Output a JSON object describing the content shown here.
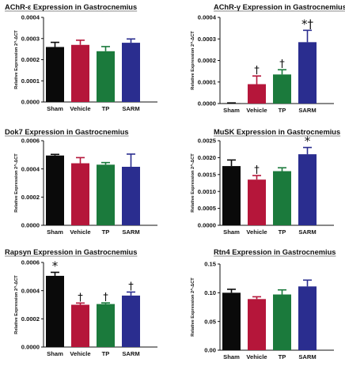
{
  "colors": {
    "Sham": "#0a0a0a",
    "Vehicle": "#b5163a",
    "TP": "#1b7a3c",
    "SARM": "#2a2d8f"
  },
  "chart_data": [
    {
      "type": "bar",
      "title": "AChR-ε Expression in Gastrocnemius",
      "ylabel": "Relative Expression 2^-ΔCT",
      "categories": [
        "Sham",
        "Vehicle",
        "TP",
        "SARM"
      ],
      "values": [
        0.00026,
        0.00027,
        0.00024,
        0.00028
      ],
      "errors": [
        2.2e-05,
        2.2e-05,
        2.2e-05,
        1.8e-05
      ],
      "annotations": [
        "",
        "",
        "",
        ""
      ],
      "ylim": [
        0,
        0.0004
      ],
      "yticks": [
        "0.0000",
        "0.0001",
        "0.0002",
        "0.0003",
        "0.0004"
      ]
    },
    {
      "type": "bar",
      "title": "AChR-γ Expression in Gastrocnemius",
      "ylabel": "Relative Expression 2^-ΔCT",
      "categories": [
        "Sham",
        "Vehicle",
        "TP",
        "SARM"
      ],
      "values": [
        2e-06,
        9e-05,
        0.000135,
        0.000285
      ],
      "errors": [
        1e-06,
        3.8e-05,
        2.2e-05,
        5.5e-05
      ],
      "annotations": [
        "",
        "†",
        "†",
        "*†"
      ],
      "ylim": [
        0,
        0.0004
      ],
      "yticks": [
        "0.0000",
        "0.0001",
        "0.0002",
        "0.0003",
        "0.0004"
      ]
    },
    {
      "type": "bar",
      "title": "Dok7 Expression in Gastrocnemius",
      "ylabel": "Relative Expression 2^-ΔCT",
      "categories": [
        "Sham",
        "Vehicle",
        "TP",
        "SARM"
      ],
      "values": [
        0.000495,
        0.00044,
        0.00043,
        0.000415
      ],
      "errors": [
        8e-06,
        4e-05,
        1.5e-05,
        9e-05
      ],
      "annotations": [
        "",
        "",
        "",
        ""
      ],
      "ylim": [
        0,
        0.0006
      ],
      "yticks": [
        "0.0000",
        "0.0002",
        "0.0004",
        "0.0006"
      ]
    },
    {
      "type": "bar",
      "title": "MuSK Expression in Gastrocnemius",
      "ylabel": "Relative Expression 2^-ΔCT",
      "categories": [
        "Sham",
        "Vehicle",
        "TP",
        "SARM"
      ],
      "values": [
        0.00175,
        0.00135,
        0.0016,
        0.0021
      ],
      "errors": [
        0.00018,
        0.00012,
        0.0001,
        0.0002
      ],
      "annotations": [
        "",
        "†",
        "",
        "*"
      ],
      "ylim": [
        0,
        0.0025
      ],
      "yticks": [
        "0.0000",
        "0.0005",
        "0.0010",
        "0.0015",
        "0.0020",
        "0.0025"
      ]
    },
    {
      "type": "bar",
      "title": "Rapsyn Expression in Gastrocnemius",
      "ylabel": "Relative Expression 2^-ΔCT",
      "categories": [
        "Sham",
        "Vehicle",
        "TP",
        "SARM"
      ],
      "values": [
        0.000505,
        0.0003,
        0.000305,
        0.000365
      ],
      "errors": [
        2.5e-05,
        1.2e-05,
        8e-06,
        2.5e-05
      ],
      "annotations": [
        "*",
        "†",
        "†",
        "†"
      ],
      "ylim": [
        0,
        0.0006
      ],
      "yticks": [
        "0.0000",
        "0.0002",
        "0.0004",
        "0.0006"
      ]
    },
    {
      "type": "bar",
      "title": "Rtn4 Expression in Gastrocnemius",
      "ylabel": "Relative Expression 2^-ΔCT",
      "categories": [
        "Sham",
        "Vehicle",
        "TP",
        "SARM"
      ],
      "values": [
        0.1,
        0.089,
        0.097,
        0.111
      ],
      "errors": [
        0.006,
        0.004,
        0.008,
        0.011
      ],
      "annotations": [
        "",
        "",
        "",
        ""
      ],
      "ylim": [
        0,
        0.15
      ],
      "yticks": [
        "0.00",
        "0.05",
        "0.10",
        "0.15"
      ]
    }
  ]
}
